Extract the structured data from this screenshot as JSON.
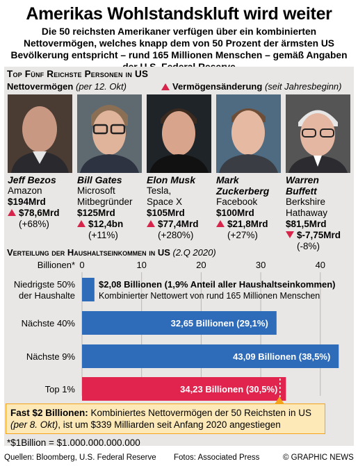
{
  "headline": "Amerikas Wohlstandskluft wird weiter",
  "intro": "Die 50 reichsten Amerikaner verfügen über ein kombinierten Nettovermögen, welches knapp dem von 50 Prozent der ärmsten US Bevölkerung entspricht – rund 165 Millionen Menschen – gemäß Angaben der U.S. Federal Reserve",
  "top5": {
    "title": "Top Fünf Reichste Personen in US",
    "net_label": "Nettovermögen",
    "net_note": "(per 12. Okt)",
    "change_label": "Vermögensänderung",
    "change_note": "(seit Jahresbeginn)",
    "people": [
      {
        "name1": "Jeff Bezos",
        "name2": "",
        "company1": "Amazon",
        "company2": "",
        "net": "$194Mrd",
        "change": "$78,6Mrd",
        "pct": "(+68%)",
        "direction": "up",
        "photo_icon": "portrait-photo"
      },
      {
        "name1": "Bill Gates",
        "name2": "",
        "company1": "Microsoft",
        "company2": "Mitbegründer",
        "net": "$125Mrd",
        "change": "$12,4bn",
        "pct": "(+11%)",
        "direction": "up",
        "photo_icon": "portrait-photo"
      },
      {
        "name1": "Elon Musk",
        "name2": "",
        "company1": "Tesla,",
        "company2": "Space X",
        "net": "$105Mrd",
        "change": "$77,4Mrd",
        "pct": "(+280%)",
        "direction": "up",
        "photo_icon": "portrait-photo"
      },
      {
        "name1": "Mark",
        "name2": "Zuckerberg",
        "company1": "Facebook",
        "company2": "",
        "net": "$100Mrd",
        "change": "$21,8Mrd",
        "pct": "(+27%)",
        "direction": "up",
        "photo_icon": "portrait-photo"
      },
      {
        "name1": "Warren",
        "name2": "Buffett",
        "company1": "Berkshire",
        "company2": "Hathaway",
        "net": "$81,5Mrd",
        "change": "$-7,75Mrd",
        "pct": "(-8%)",
        "direction": "down",
        "photo_icon": "portrait-photo"
      }
    ]
  },
  "distribution": {
    "title": "Verteilung der Haushaltseinkommen in US",
    "note": "(2.Q 2020)"
  },
  "chart_data": {
    "type": "bar",
    "orientation": "horizontal",
    "title": "Verteilung der Haushaltseinkommen in US (2.Q 2020)",
    "axis_label": "Billionen*",
    "xlim": [
      0,
      45
    ],
    "ticks": [
      0,
      10,
      20,
      30,
      40
    ],
    "categories": [
      "Niedrigste 50% der Haushalte",
      "Nächste 40%",
      "Nächste 9%",
      "Top 1%"
    ],
    "category_lines": [
      [
        "Niedrigste 50%",
        "der Haushalte"
      ],
      [
        "Nächste 40%"
      ],
      [
        "Nächste 9%"
      ],
      [
        "Top 1%"
      ]
    ],
    "values": [
      2.08,
      32.65,
      43.09,
      34.23
    ],
    "bar_labels": [
      "",
      "32,65 Billionen (29,1%)",
      "43,09 Billionen (38,5%)",
      "34,23 Billionen (30,5%)"
    ],
    "bar_colors": [
      "#2e6bb9",
      "#2e6bb9",
      "#2e6bb9",
      "#e0244e"
    ],
    "outside_label_bold": "$2,08 Billionen (1,9% Anteil aller Haushaltseinkommen)",
    "outside_label_sub": "Kombinierter Nettowert von rund 165 Millionen Menschen",
    "top50_marker_value": 32.3
  },
  "callout": {
    "bold": "Fast $2 Billionen:",
    "text1": "Kombiniertes Nettovermögen der 50 Reichsten in US",
    "note": "(per 8. Okt)",
    "text2": ", ist um $339 Milliarden seit Anfang 2020 angestiegen"
  },
  "footnote": "*$1Billion = $1.000.000.000.000",
  "footer": {
    "sources": "Quellen: Bloomberg, U.S. Federal Reserve",
    "photos": "Fotos: Associated Press",
    "credit": "© GRAPHIC NEWS"
  },
  "colors": {
    "bar_blue": "#2e6bb9",
    "bar_red": "#e0244e",
    "accent_red": "#d6244b",
    "panel": "#e9e7e5",
    "callout_bg": "#fde9b8",
    "callout_border": "#f4a21a"
  }
}
